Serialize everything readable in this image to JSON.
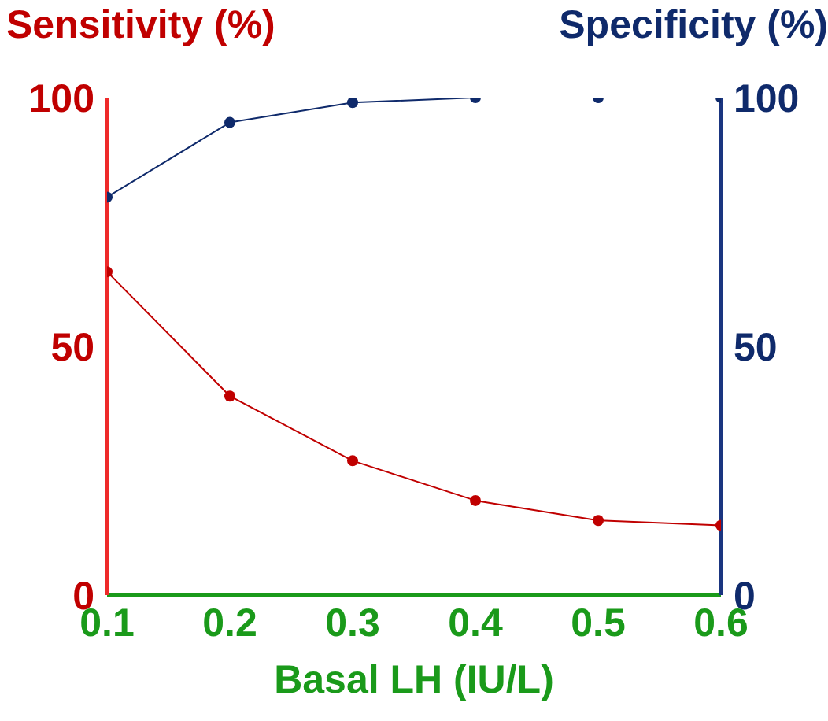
{
  "chart_data": {
    "type": "line",
    "title": null,
    "ylabel": "Sensitivity (%)",
    "y2label": "Specificity (%)",
    "xlabel": "Basal LH (IU/L)",
    "x": [
      0.1,
      0.2,
      0.3,
      0.4,
      0.5,
      0.6
    ],
    "xlim": [
      0.1,
      0.6
    ],
    "xticks": [
      0.1,
      0.2,
      0.3,
      0.4,
      0.5,
      0.6
    ],
    "ylim": [
      0,
      100
    ],
    "yticks": [
      0,
      50,
      100
    ],
    "y2lim": [
      0,
      100
    ],
    "y2ticks": [
      0,
      50,
      100
    ],
    "grid": false,
    "legend": false,
    "marker": "circle",
    "line_style": "solid",
    "series": [
      {
        "color": "#c00000",
        "values": [
          65,
          40,
          27,
          19,
          15,
          14
        ]
      },
      {
        "color": "#0f2a6b",
        "values": [
          80,
          95,
          99,
          100,
          100,
          100
        ],
        "axis": "y2"
      }
    ]
  }
}
